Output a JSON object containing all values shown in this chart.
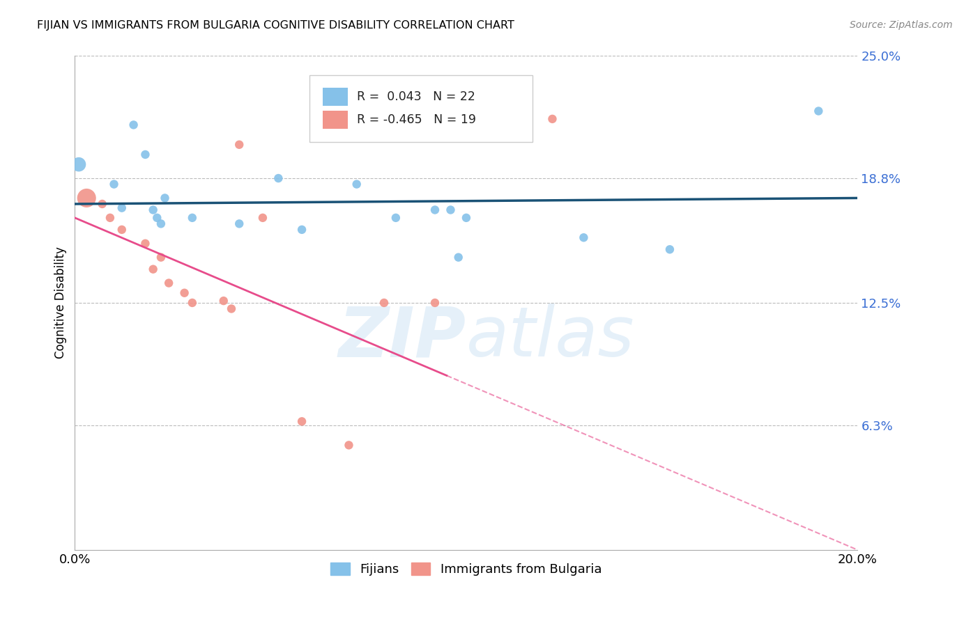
{
  "title": "FIJIAN VS IMMIGRANTS FROM BULGARIA COGNITIVE DISABILITY CORRELATION CHART",
  "source": "Source: ZipAtlas.com",
  "ylabel_label": "Cognitive Disability",
  "x_min": 0.0,
  "x_max": 0.2,
  "y_min": 0.0,
  "y_max": 0.25,
  "y_tick_labels_right": [
    "25.0%",
    "18.8%",
    "12.5%",
    "6.3%"
  ],
  "y_tick_positions_right": [
    0.25,
    0.188,
    0.125,
    0.063
  ],
  "fijian_color": "#85C1E9",
  "bulgaria_color": "#F1948A",
  "fijian_line_color": "#1A5276",
  "bulgaria_line_color": "#E74C8B",
  "fijian_R": 0.043,
  "fijian_N": 22,
  "bulgaria_R": -0.465,
  "bulgaria_N": 19,
  "legend_label_fijian": "Fijians",
  "legend_label_bulgaria": "Immigrants from Bulgaria",
  "fijian_x": [
    0.001,
    0.01,
    0.012,
    0.015,
    0.018,
    0.02,
    0.021,
    0.022,
    0.023,
    0.03,
    0.042,
    0.052,
    0.058,
    0.072,
    0.082,
    0.092,
    0.096,
    0.098,
    0.1,
    0.13,
    0.152,
    0.19
  ],
  "fijian_y": [
    0.195,
    0.185,
    0.173,
    0.215,
    0.2,
    0.172,
    0.168,
    0.165,
    0.178,
    0.168,
    0.165,
    0.188,
    0.162,
    0.185,
    0.168,
    0.172,
    0.172,
    0.148,
    0.168,
    0.158,
    0.152,
    0.222
  ],
  "fijian_size": [
    220,
    80,
    80,
    80,
    80,
    80,
    80,
    80,
    80,
    80,
    80,
    80,
    80,
    80,
    80,
    80,
    80,
    80,
    80,
    80,
    80,
    80
  ],
  "bulgaria_x": [
    0.003,
    0.007,
    0.009,
    0.012,
    0.018,
    0.02,
    0.022,
    0.024,
    0.028,
    0.03,
    0.038,
    0.04,
    0.042,
    0.048,
    0.058,
    0.07,
    0.079,
    0.092,
    0.122
  ],
  "bulgaria_y": [
    0.178,
    0.175,
    0.168,
    0.162,
    0.155,
    0.142,
    0.148,
    0.135,
    0.13,
    0.125,
    0.126,
    0.122,
    0.205,
    0.168,
    0.065,
    0.053,
    0.125,
    0.125,
    0.218
  ],
  "bulgaria_size": [
    380,
    80,
    80,
    80,
    80,
    80,
    80,
    80,
    80,
    80,
    80,
    80,
    80,
    80,
    80,
    80,
    80,
    80,
    80
  ],
  "fijian_line_y0": 0.175,
  "fijian_line_y1": 0.178,
  "bulgaria_line_y0": 0.168,
  "bulgaria_line_y1": 0.0
}
